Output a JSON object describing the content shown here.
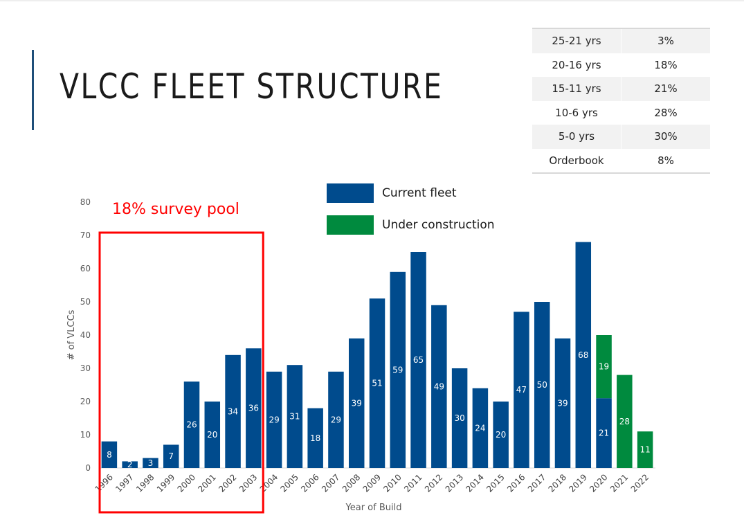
{
  "page": {
    "title": "VLCC FLEET STRUCTURE"
  },
  "age_table": {
    "rows": [
      {
        "label": "25-21 yrs",
        "value": "3%"
      },
      {
        "label": "20-16 yrs",
        "value": "18%"
      },
      {
        "label": "15-11 yrs",
        "value": "21%"
      },
      {
        "label": "10-6 yrs",
        "value": "28%"
      },
      {
        "label": "5-0 yrs",
        "value": "30%"
      },
      {
        "label": "Orderbook",
        "value": "8%"
      }
    ]
  },
  "annotation": {
    "text": "18% survey pool",
    "color": "#ff0000",
    "spans_categories": [
      "1996",
      "2003"
    ]
  },
  "colors": {
    "current_fleet": "#004b8d",
    "under_construction": "#008a3e",
    "accent": "#1f4e79"
  },
  "chart_data": {
    "type": "bar",
    "stacked": true,
    "title": "",
    "xlabel": "Year of Build",
    "ylabel": "# of VLCCs",
    "ylim": [
      0,
      80
    ],
    "yticks": [
      0,
      10,
      20,
      30,
      40,
      50,
      60,
      70,
      80
    ],
    "grid": false,
    "legend_position": "top",
    "categories": [
      "1996",
      "1997",
      "1998",
      "1999",
      "2000",
      "2001",
      "2002",
      "2003",
      "2004",
      "2005",
      "2006",
      "2007",
      "2008",
      "2009",
      "2010",
      "2011",
      "2012",
      "2013",
      "2014",
      "2015",
      "2016",
      "2017",
      "2018",
      "2019",
      "2020",
      "2021",
      "2022"
    ],
    "series": [
      {
        "name": "Current fleet",
        "color": "#004b8d",
        "values": [
          8,
          2,
          3,
          7,
          26,
          20,
          34,
          36,
          29,
          31,
          18,
          29,
          39,
          51,
          59,
          65,
          49,
          30,
          24,
          20,
          47,
          50,
          39,
          68,
          21,
          0,
          0
        ]
      },
      {
        "name": "Under construction",
        "color": "#008a3e",
        "values": [
          0,
          0,
          0,
          0,
          0,
          0,
          0,
          0,
          0,
          0,
          0,
          0,
          0,
          0,
          0,
          0,
          0,
          0,
          0,
          0,
          0,
          0,
          0,
          0,
          19,
          28,
          11
        ]
      }
    ]
  }
}
